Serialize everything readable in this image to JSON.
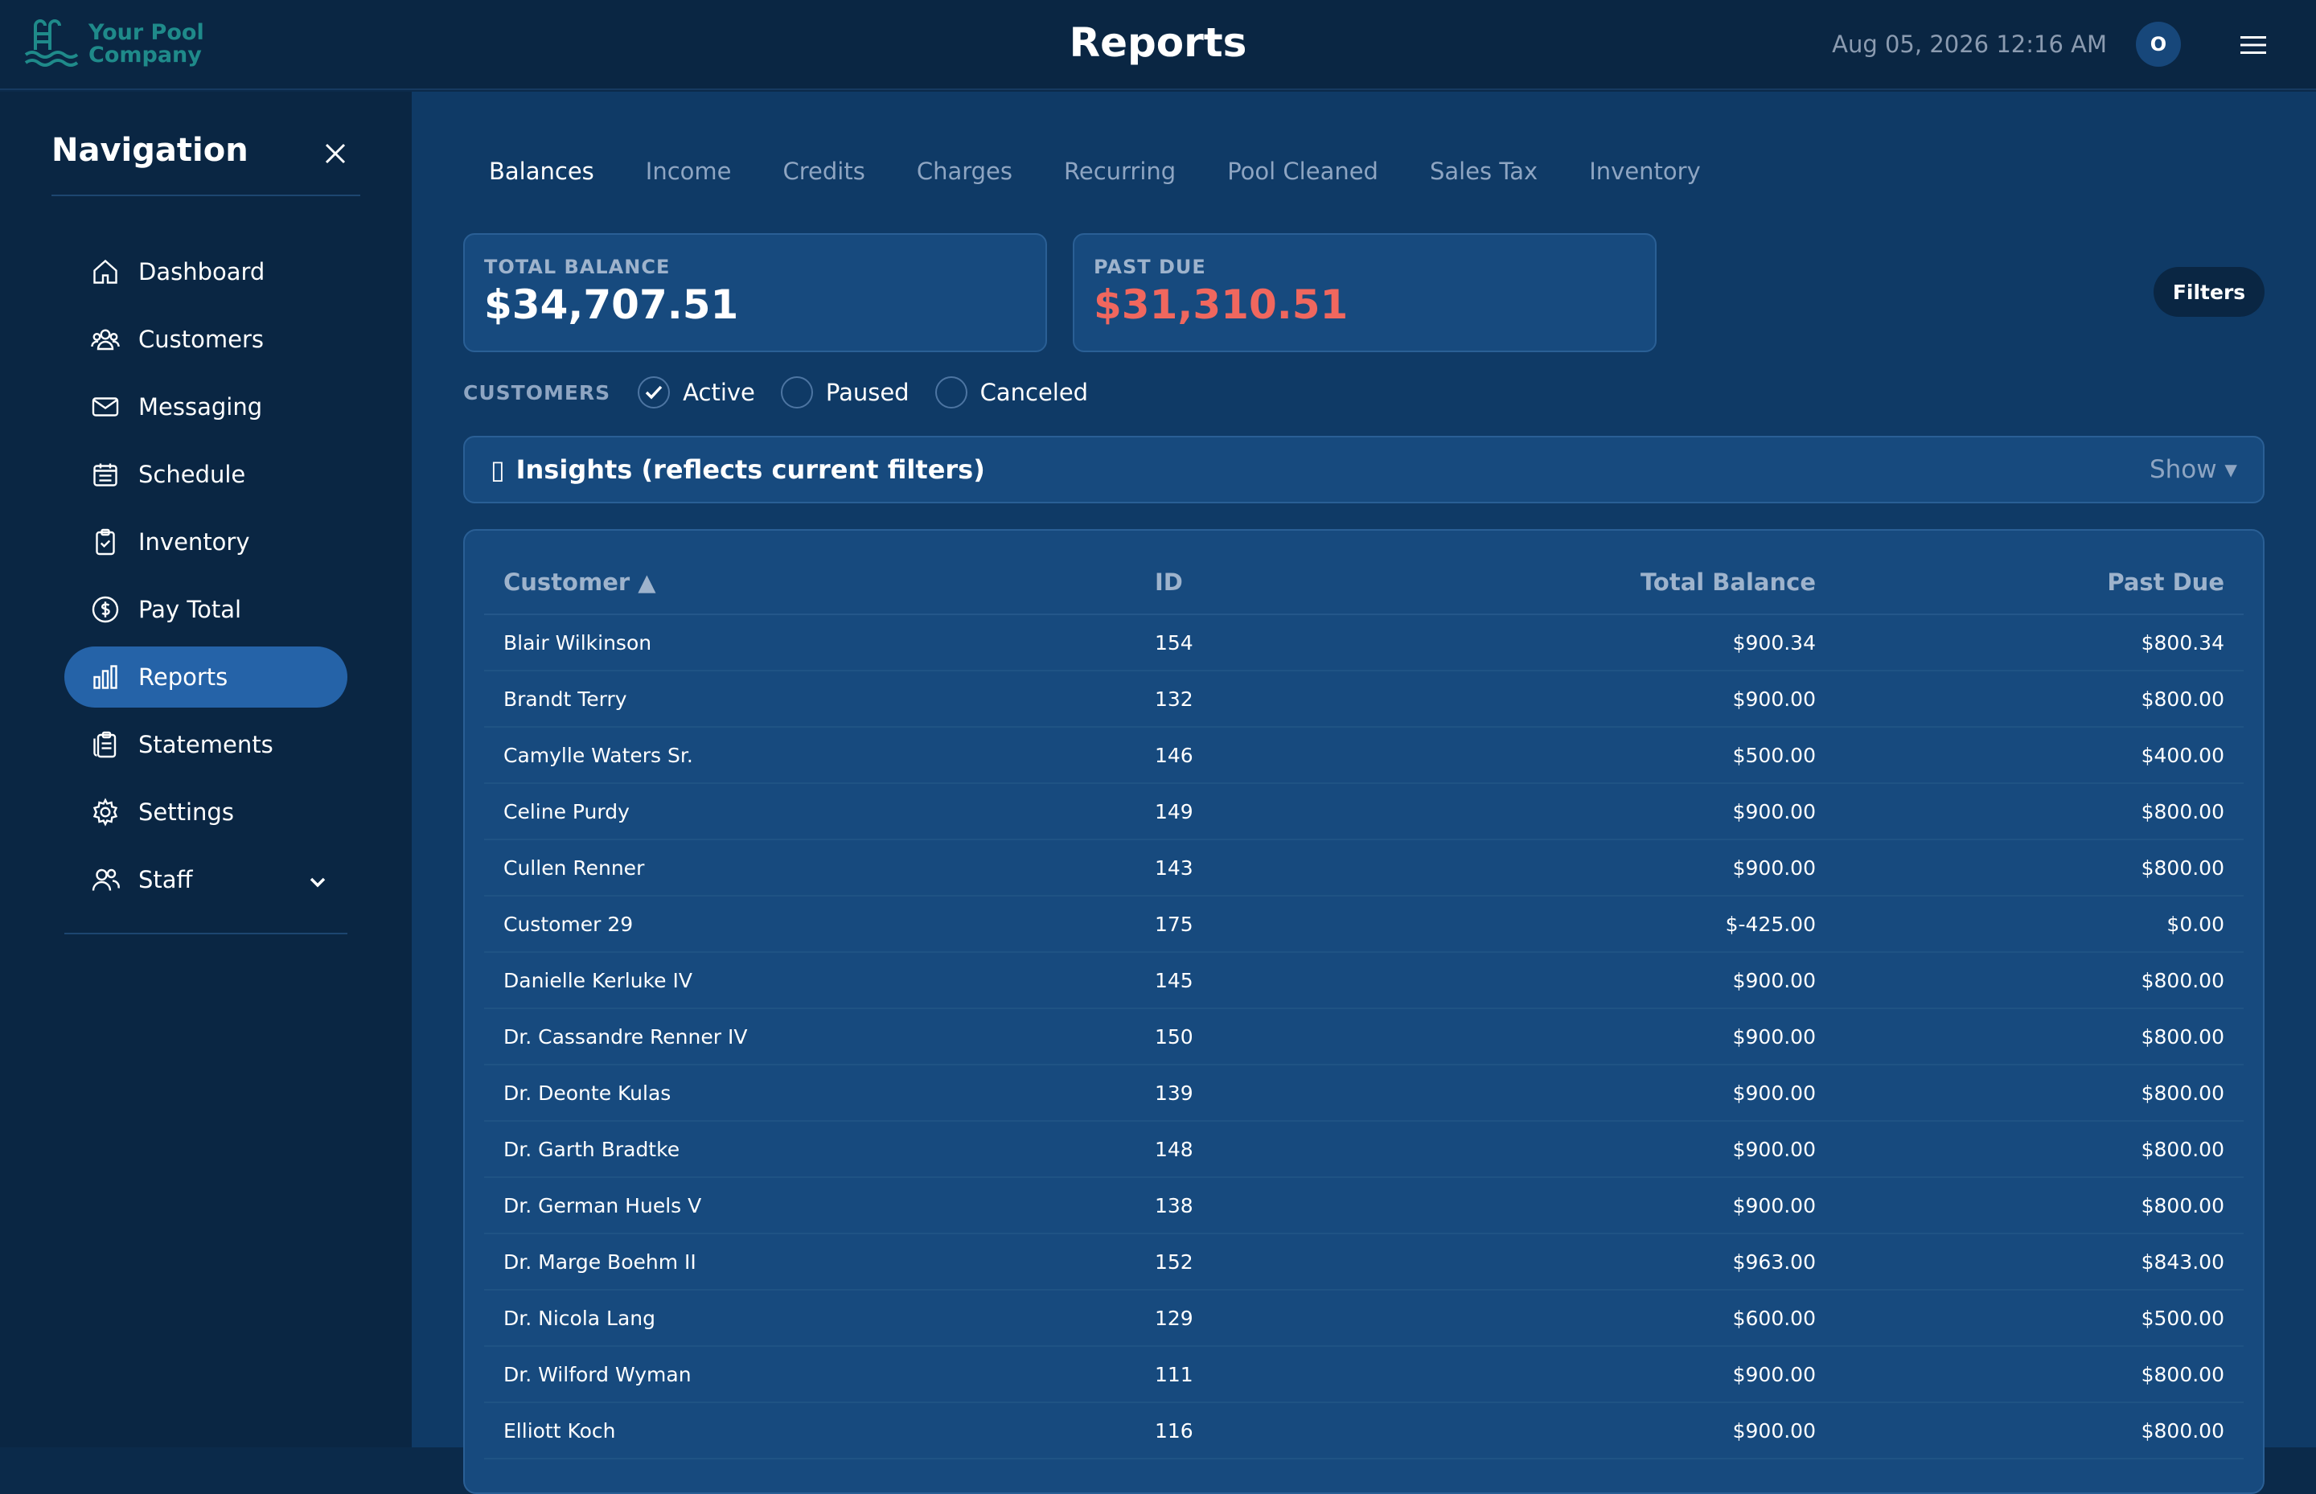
{
  "header": {
    "logo_text_line1": "Your Pool",
    "logo_text_line2": "Company",
    "title": "Reports",
    "datetime": "Aug 05, 2026 12:16 AM",
    "avatar_initial": "O"
  },
  "sidebar": {
    "title": "Navigation",
    "items": [
      {
        "label": "Dashboard",
        "icon": "home-icon"
      },
      {
        "label": "Customers",
        "icon": "users-icon"
      },
      {
        "label": "Messaging",
        "icon": "mail-icon"
      },
      {
        "label": "Schedule",
        "icon": "calendar-icon"
      },
      {
        "label": "Inventory",
        "icon": "clipboard-check-icon"
      },
      {
        "label": "Pay Total",
        "icon": "dollar-circle-icon"
      },
      {
        "label": "Reports",
        "icon": "bar-chart-icon",
        "active": true
      },
      {
        "label": "Statements",
        "icon": "documents-icon"
      },
      {
        "label": "Settings",
        "icon": "gear-icon"
      },
      {
        "label": "Staff",
        "icon": "staff-icon"
      }
    ]
  },
  "tabs": [
    "Balances",
    "Income",
    "Credits",
    "Charges",
    "Recurring",
    "Pool Cleaned",
    "Sales Tax",
    "Inventory"
  ],
  "active_tab": "Balances",
  "stats": {
    "total_balance_label": "TOTAL BALANCE",
    "total_balance_value": "$34,707.51",
    "past_due_label": "PAST DUE",
    "past_due_value": "$31,310.51"
  },
  "filters_label": "Filters",
  "customers_filter": {
    "label": "CUSTOMERS",
    "options": [
      {
        "label": "Active",
        "checked": true
      },
      {
        "label": "Paused",
        "checked": false
      },
      {
        "label": "Canceled",
        "checked": false
      }
    ]
  },
  "insights": {
    "glyph": "▯",
    "title": "Insights (reflects current filters)",
    "toggle": "Show ▾"
  },
  "table": {
    "headers": [
      "Customer ▲",
      "ID",
      "Total Balance",
      "Past Due"
    ],
    "rows": [
      [
        "Blair Wilkinson",
        "154",
        "$900.34",
        "$800.34"
      ],
      [
        "Brandt Terry",
        "132",
        "$900.00",
        "$800.00"
      ],
      [
        "Camylle Waters Sr.",
        "146",
        "$500.00",
        "$400.00"
      ],
      [
        "Celine Purdy",
        "149",
        "$900.00",
        "$800.00"
      ],
      [
        "Cullen Renner",
        "143",
        "$900.00",
        "$800.00"
      ],
      [
        "Customer 29",
        "175",
        "$-425.00",
        "$0.00"
      ],
      [
        "Danielle Kerluke IV",
        "145",
        "$900.00",
        "$800.00"
      ],
      [
        "Dr. Cassandre Renner IV",
        "150",
        "$900.00",
        "$800.00"
      ],
      [
        "Dr. Deonte Kulas",
        "139",
        "$900.00",
        "$800.00"
      ],
      [
        "Dr. Garth Bradtke",
        "148",
        "$900.00",
        "$800.00"
      ],
      [
        "Dr. German Huels V",
        "138",
        "$900.00",
        "$800.00"
      ],
      [
        "Dr. Marge Boehm II",
        "152",
        "$963.00",
        "$843.00"
      ],
      [
        "Dr. Nicola Lang",
        "129",
        "$600.00",
        "$500.00"
      ],
      [
        "Dr. Wilford Wyman",
        "111",
        "$900.00",
        "$800.00"
      ],
      [
        "Elliott Koch",
        "116",
        "$900.00",
        "$800.00"
      ]
    ]
  },
  "colors": {
    "accent": "#2563a8",
    "past_due": "#f0675e",
    "logo": "#1f8a8a"
  }
}
